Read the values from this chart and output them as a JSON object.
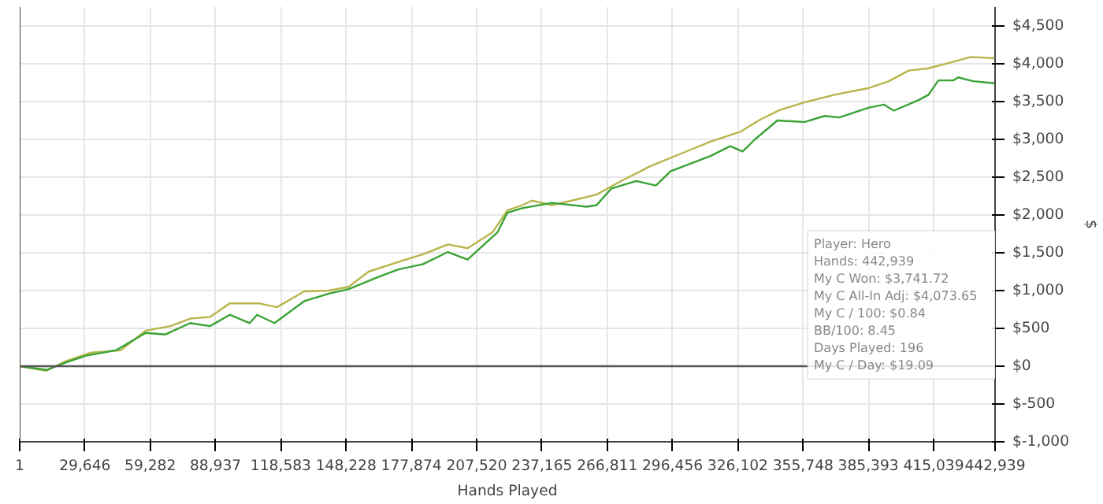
{
  "chart_data": {
    "type": "line",
    "xlabel": "Hands Played",
    "ylabel": "$",
    "xlim": [
      1,
      442939
    ],
    "ylim": [
      -1000,
      4750
    ],
    "xticks": [
      1,
      {
        "value": 29646,
        "label": "29,646"
      },
      {
        "value": 59282,
        "label": "59,282"
      },
      {
        "value": 88937,
        "label": "88,937"
      },
      {
        "value": 118583,
        "label": "118,583"
      },
      {
        "value": 148228,
        "label": "148,228"
      },
      {
        "value": 177874,
        "label": "177,874"
      },
      {
        "value": 207520,
        "label": "207,520"
      },
      {
        "value": 237165,
        "label": "237,165"
      },
      {
        "value": 266811,
        "label": "266,811"
      },
      {
        "value": 296456,
        "label": "296,456"
      },
      {
        "value": 326102,
        "label": "326,102"
      },
      {
        "value": 355748,
        "label": "355,748"
      },
      {
        "value": 385393,
        "label": "385,393"
      },
      {
        "value": 415039,
        "label": "415,039"
      },
      {
        "value": 442939,
        "label": "442,939"
      }
    ],
    "yticks": [
      {
        "value": -1000,
        "label": "$-1,000"
      },
      {
        "value": -500,
        "label": "$-500"
      },
      {
        "value": 0,
        "label": "$0"
      },
      {
        "value": 500,
        "label": "$500"
      },
      {
        "value": 1000,
        "label": "$1,000"
      },
      {
        "value": 1500,
        "label": "$1,500"
      },
      {
        "value": 2000,
        "label": "$2,000"
      },
      {
        "value": 2500,
        "label": "$2,500"
      },
      {
        "value": 3000,
        "label": "$3,000"
      },
      {
        "value": 3500,
        "label": "$3,500"
      },
      {
        "value": 4000,
        "label": "$4,000"
      },
      {
        "value": 4500,
        "label": "$4,500"
      }
    ],
    "grid": true,
    "ref_lines": [
      {
        "axis": "y",
        "value": 0,
        "color": "#555555"
      }
    ],
    "series": [
      {
        "color": "#b8b54c",
        "x": [
          1,
          12150,
          21150,
          32400,
          45900,
          57200,
          68400,
          77440,
          86430,
          95400,
          108900,
          116800,
          129200,
          140400,
          149400,
          158400,
          171970,
          183200,
          194450,
          203400,
          214700,
          221450,
          228200,
          232700,
          241700,
          250700,
          261950,
          273200,
          286700,
          300200,
          313660,
          327200,
          336200,
          345200,
          356500,
          370000,
          385700,
          394700,
          403700,
          412700,
          421700,
          431900,
          442939
        ],
        "values": [
          0,
          -60,
          70,
          180,
          210,
          470,
          530,
          630,
          650,
          830,
          830,
          780,
          990,
          1000,
          1050,
          1250,
          1380,
          1480,
          1610,
          1560,
          1770,
          2060,
          2130,
          2190,
          2130,
          2190,
          2270,
          2450,
          2650,
          2810,
          2970,
          3100,
          3260,
          3390,
          3490,
          3590,
          3680,
          3770,
          3910,
          3940,
          4010,
          4090,
          4073.65
        ]
      },
      {
        "color": "#3aa335",
        "x": [
          1,
          12150,
          21150,
          30180,
          43700,
          57200,
          66170,
          77440,
          86430,
          95400,
          104450,
          107800,
          115700,
          129200,
          140400,
          149400,
          162900,
          171970,
          183200,
          194450,
          203400,
          216950,
          221450,
          228200,
          241700,
          257450,
          261950,
          268700,
          280000,
          288900,
          295650,
          313660,
          322650,
          328300,
          333900,
          344050,
          356500,
          365500,
          372200,
          385700,
          392450,
          396950,
          408200,
          412700,
          417200,
          423950,
          426200,
          432950,
          442939
        ],
        "values": [
          0,
          -50,
          50,
          140,
          210,
          440,
          420,
          570,
          530,
          680,
          570,
          680,
          570,
          860,
          960,
          1020,
          1180,
          1280,
          1350,
          1510,
          1410,
          1770,
          2030,
          2090,
          2160,
          2110,
          2130,
          2350,
          2450,
          2390,
          2580,
          2780,
          2910,
          2840,
          3000,
          3250,
          3230,
          3310,
          3290,
          3420,
          3460,
          3380,
          3520,
          3590,
          3780,
          3780,
          3820,
          3770,
          3741.72
        ]
      }
    ],
    "annotations": [
      "Player: Hero",
      "Hands: 442,939",
      "My C Won: $3,741.72",
      "My C All-In Adj: $4,073.65",
      "My C / 100: $0.84",
      "BB/100: 8.45",
      "Days Played: 196",
      "My C / Day: $19.09"
    ]
  }
}
